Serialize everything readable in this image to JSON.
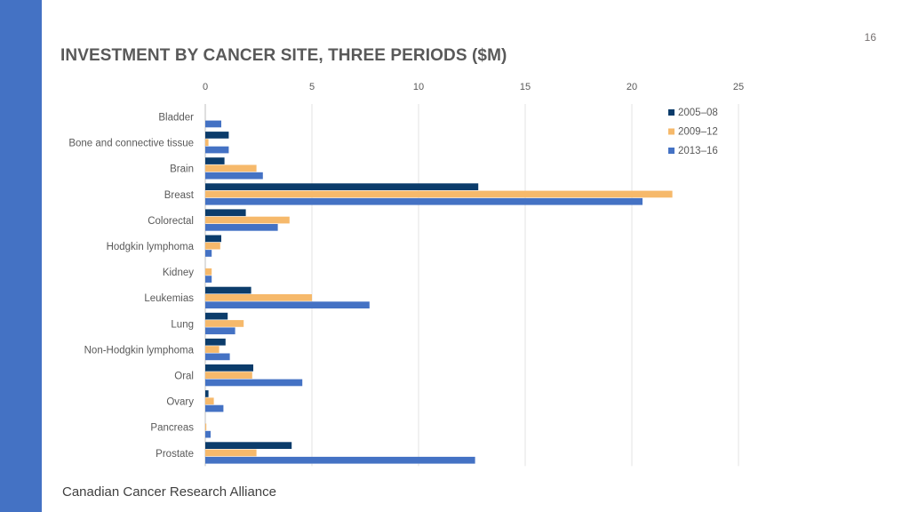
{
  "slide": {
    "page_number": "16",
    "title": "INVESTMENT BY CANCER SITE, THREE PERIODS ($M)",
    "footer": "Canadian Cancer Research Alliance",
    "accent_color": "#4472c4"
  },
  "chart_data": {
    "type": "bar",
    "orientation": "horizontal",
    "title": "",
    "xlabel": "",
    "ylabel": "",
    "xlim": [
      0,
      25
    ],
    "x_ticks": [
      0,
      5,
      10,
      15,
      20,
      25
    ],
    "x_axis_position": "top",
    "grid": true,
    "legend_position": "top-right",
    "categories": [
      "Bladder",
      "Bone and connective tissue",
      "Brain",
      "Breast",
      "Colorectal",
      "Hodgkin lymphoma",
      "Kidney",
      "Leukemias",
      "Lung",
      "Non-Hodgkin lymphoma",
      "Oral",
      "Ovary",
      "Pancreas",
      "Prostate"
    ],
    "series": [
      {
        "name": "2005–08",
        "color": "#0b3c6b",
        "values": [
          0.0,
          1.1,
          0.9,
          12.8,
          1.9,
          0.75,
          0.0,
          2.15,
          1.05,
          0.95,
          2.25,
          0.15,
          0.0,
          4.05
        ]
      },
      {
        "name": "2009–12",
        "color": "#f6b96b",
        "values": [
          0.0,
          0.15,
          2.4,
          21.9,
          3.95,
          0.7,
          0.3,
          5.0,
          1.8,
          0.65,
          2.2,
          0.4,
          0.05,
          2.4
        ]
      },
      {
        "name": "2013–16",
        "color": "#4472c4",
        "values": [
          0.75,
          1.1,
          2.7,
          20.5,
          3.4,
          0.3,
          0.3,
          7.7,
          1.4,
          1.15,
          4.55,
          0.85,
          0.25,
          12.65
        ]
      }
    ]
  }
}
